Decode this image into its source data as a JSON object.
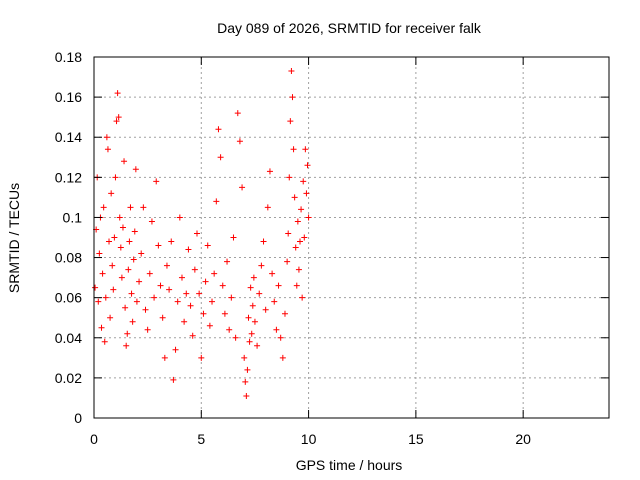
{
  "chart_data": {
    "type": "scatter",
    "title": "Day 089 of 2026, SRMTID for receiver falk",
    "xlabel": "GPS time / hours",
    "ylabel": "SRMTID / TECUs",
    "xlim": [
      0,
      24
    ],
    "ylim": [
      0,
      0.18
    ],
    "xticks": [
      0,
      5,
      10,
      15,
      20
    ],
    "yticks": [
      0,
      0.02,
      0.04,
      0.06,
      0.08,
      0.1,
      0.12,
      0.14,
      0.16,
      0.18
    ],
    "xtick_labels": [
      "0",
      "5",
      "10",
      "15",
      "20"
    ],
    "ytick_labels": [
      "0",
      "0.02",
      "0.04",
      "0.06",
      "0.08",
      "0.1",
      "0.12",
      "0.14",
      "0.16",
      "0.18"
    ],
    "grid": true,
    "marker": "+",
    "color": "#ff0000",
    "series": [
      {
        "points": [
          [
            0.05,
            0.065
          ],
          [
            0.1,
            0.094
          ],
          [
            0.15,
            0.12
          ],
          [
            0.2,
            0.058
          ],
          [
            0.25,
            0.082
          ],
          [
            0.3,
            0.1
          ],
          [
            0.35,
            0.045
          ],
          [
            0.4,
            0.072
          ],
          [
            0.45,
            0.105
          ],
          [
            0.5,
            0.038
          ],
          [
            0.55,
            0.06
          ],
          [
            0.6,
            0.14
          ],
          [
            0.65,
            0.134
          ],
          [
            0.7,
            0.088
          ],
          [
            0.75,
            0.05
          ],
          [
            0.8,
            0.112
          ],
          [
            0.85,
            0.076
          ],
          [
            0.9,
            0.064
          ],
          [
            0.95,
            0.09
          ],
          [
            1.0,
            0.12
          ],
          [
            1.05,
            0.148
          ],
          [
            1.1,
            0.162
          ],
          [
            1.15,
            0.15
          ],
          [
            1.2,
            0.1
          ],
          [
            1.25,
            0.085
          ],
          [
            1.3,
            0.07
          ],
          [
            1.35,
            0.095
          ],
          [
            1.4,
            0.128
          ],
          [
            1.45,
            0.055
          ],
          [
            1.5,
            0.036
          ],
          [
            1.55,
            0.042
          ],
          [
            1.6,
            0.074
          ],
          [
            1.65,
            0.088
          ],
          [
            1.7,
            0.105
          ],
          [
            1.75,
            0.062
          ],
          [
            1.8,
            0.048
          ],
          [
            1.85,
            0.079
          ],
          [
            1.9,
            0.093
          ],
          [
            1.95,
            0.124
          ],
          [
            2.0,
            0.058
          ],
          [
            2.1,
            0.068
          ],
          [
            2.2,
            0.082
          ],
          [
            2.3,
            0.105
          ],
          [
            2.4,
            0.054
          ],
          [
            2.5,
            0.044
          ],
          [
            2.6,
            0.072
          ],
          [
            2.7,
            0.098
          ],
          [
            2.8,
            0.06
          ],
          [
            2.9,
            0.118
          ],
          [
            3.0,
            0.086
          ],
          [
            3.1,
            0.066
          ],
          [
            3.2,
            0.05
          ],
          [
            3.3,
            0.03
          ],
          [
            3.4,
            0.076
          ],
          [
            3.5,
            0.064
          ],
          [
            3.6,
            0.088
          ],
          [
            3.7,
            0.019
          ],
          [
            3.8,
            0.034
          ],
          [
            3.9,
            0.058
          ],
          [
            4.0,
            0.1
          ],
          [
            4.1,
            0.07
          ],
          [
            4.2,
            0.048
          ],
          [
            4.3,
            0.062
          ],
          [
            4.4,
            0.084
          ],
          [
            4.5,
            0.056
          ],
          [
            4.6,
            0.041
          ],
          [
            4.7,
            0.074
          ],
          [
            4.8,
            0.092
          ],
          [
            4.9,
            0.062
          ],
          [
            5.0,
            0.03
          ],
          [
            5.1,
            0.052
          ],
          [
            5.2,
            0.068
          ],
          [
            5.3,
            0.086
          ],
          [
            5.4,
            0.046
          ],
          [
            5.5,
            0.058
          ],
          [
            5.6,
            0.072
          ],
          [
            5.7,
            0.108
          ],
          [
            5.8,
            0.144
          ],
          [
            5.9,
            0.13
          ],
          [
            6.0,
            0.066
          ],
          [
            6.1,
            0.052
          ],
          [
            6.2,
            0.078
          ],
          [
            6.3,
            0.044
          ],
          [
            6.4,
            0.06
          ],
          [
            6.5,
            0.09
          ],
          [
            6.6,
            0.04
          ],
          [
            6.7,
            0.152
          ],
          [
            6.8,
            0.138
          ],
          [
            6.9,
            0.115
          ],
          [
            7.0,
            0.03
          ],
          [
            7.05,
            0.018
          ],
          [
            7.1,
            0.011
          ],
          [
            7.15,
            0.024
          ],
          [
            7.2,
            0.05
          ],
          [
            7.25,
            0.038
          ],
          [
            7.3,
            0.065
          ],
          [
            7.35,
            0.042
          ],
          [
            7.4,
            0.056
          ],
          [
            7.45,
            0.07
          ],
          [
            7.5,
            0.048
          ],
          [
            7.6,
            0.036
          ],
          [
            7.7,
            0.062
          ],
          [
            7.8,
            0.076
          ],
          [
            7.9,
            0.088
          ],
          [
            8.0,
            0.054
          ],
          [
            8.1,
            0.105
          ],
          [
            8.2,
            0.123
          ],
          [
            8.3,
            0.072
          ],
          [
            8.4,
            0.058
          ],
          [
            8.5,
            0.044
          ],
          [
            8.6,
            0.066
          ],
          [
            8.7,
            0.04
          ],
          [
            8.8,
            0.03
          ],
          [
            8.9,
            0.052
          ],
          [
            9.0,
            0.078
          ],
          [
            9.05,
            0.092
          ],
          [
            9.1,
            0.12
          ],
          [
            9.15,
            0.148
          ],
          [
            9.2,
            0.173
          ],
          [
            9.25,
            0.16
          ],
          [
            9.3,
            0.134
          ],
          [
            9.35,
            0.11
          ],
          [
            9.4,
            0.085
          ],
          [
            9.45,
            0.066
          ],
          [
            9.5,
            0.098
          ],
          [
            9.55,
            0.074
          ],
          [
            9.6,
            0.088
          ],
          [
            9.65,
            0.104
          ],
          [
            9.7,
            0.06
          ],
          [
            9.75,
            0.118
          ],
          [
            9.8,
            0.09
          ],
          [
            9.85,
            0.134
          ],
          [
            9.9,
            0.112
          ],
          [
            9.95,
            0.126
          ],
          [
            10.0,
            0.1
          ]
        ]
      }
    ]
  }
}
